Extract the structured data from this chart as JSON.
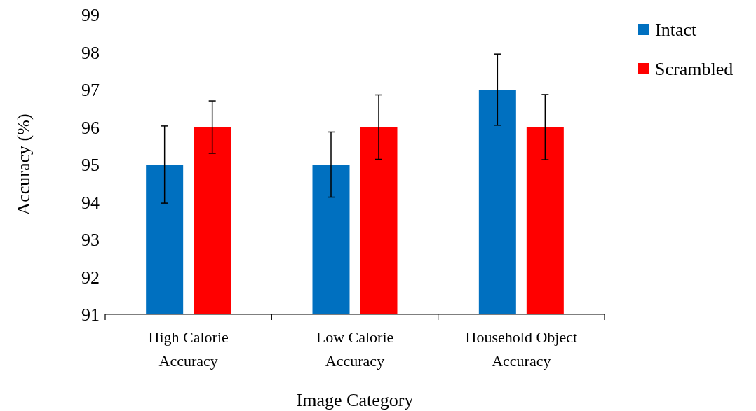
{
  "chart_data": {
    "type": "bar",
    "xlabel": "Image Category",
    "ylabel": "Accuracy (%)",
    "categories": [
      "High Calorie Accuracy",
      "Low Calorie Accuracy",
      "Household Object Accuracy"
    ],
    "series": [
      {
        "name": "Intact",
        "color": "#0070c0",
        "values": [
          95,
          95,
          97
        ],
        "errors": [
          1.03,
          0.87,
          0.95
        ]
      },
      {
        "name": "Scrambled",
        "color": "#ff0000",
        "values": [
          96,
          96,
          96
        ],
        "errors": [
          0.7,
          0.86,
          0.87
        ]
      }
    ],
    "ylim": [
      91,
      99
    ],
    "yticks": [
      91,
      92,
      93,
      94,
      95,
      96,
      97,
      98,
      99
    ],
    "grid": false,
    "legend": "top right"
  }
}
